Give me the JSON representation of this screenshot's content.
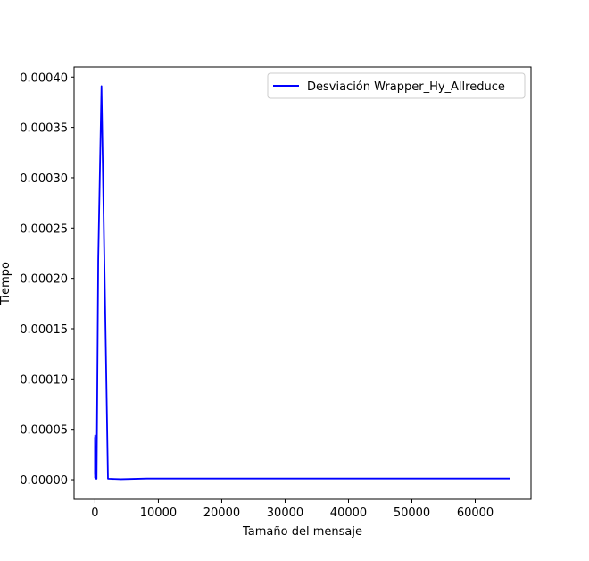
{
  "chart_data": {
    "type": "line",
    "title": "",
    "xlabel": "Tamaño del mensaje",
    "ylabel": "Tiempo",
    "xlim": [
      -3300,
      68800
    ],
    "ylim": [
      -1.95e-05,
      0.00041
    ],
    "x_ticks": [
      0,
      10000,
      20000,
      30000,
      40000,
      50000,
      60000
    ],
    "x_tick_labels": [
      "0",
      "10000",
      "20000",
      "30000",
      "40000",
      "50000",
      "60000"
    ],
    "y_ticks": [
      0,
      5e-05,
      0.0001,
      0.00015,
      0.0002,
      0.00025,
      0.0003,
      0.00035,
      0.0004
    ],
    "y_tick_labels": [
      "0.00000",
      "0.00005",
      "0.00010",
      "0.00015",
      "0.00020",
      "0.00025",
      "0.00030",
      "0.00035",
      "0.00040"
    ],
    "grid": false,
    "legend_position": "upper right",
    "series": [
      {
        "name": "Desviación Wrapper_Hy_Allreduce",
        "color": "#0000ff",
        "x": [
          1,
          2,
          4,
          8,
          16,
          32,
          64,
          128,
          256,
          512,
          1024,
          2048,
          4096,
          8192,
          16384,
          32768,
          65536
        ],
        "y": [
          5e-06,
          4.2e-05,
          1.2e-05,
          4e-05,
          2e-06,
          4.4e-05,
          1e-06,
          3e-06,
          1e-06,
          0.000218,
          0.000391,
          1e-06,
          5e-07,
          1.2e-06,
          1.2e-06,
          1.2e-06,
          1.2e-06
        ]
      }
    ]
  }
}
